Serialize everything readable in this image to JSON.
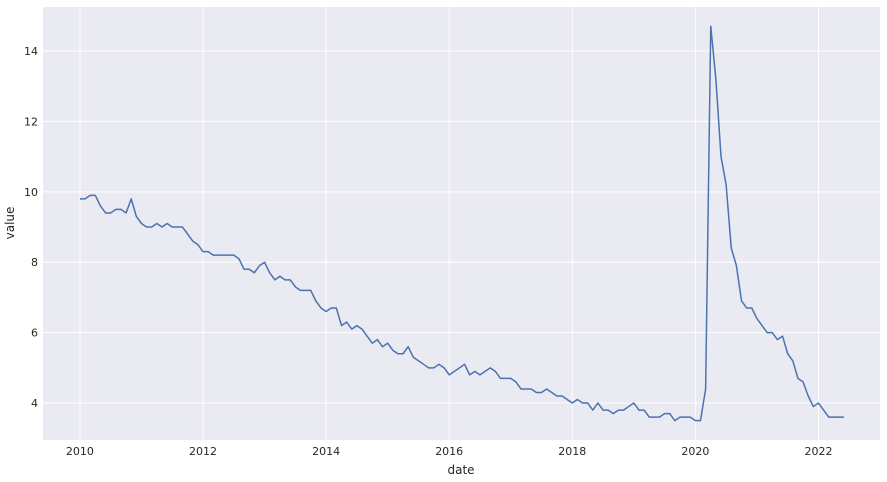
{
  "chart_data": {
    "type": "line",
    "title": "",
    "xlabel": "date",
    "ylabel": "value",
    "xlim": [
      2009.4,
      2023.0
    ],
    "ylim": [
      2.95,
      15.25
    ],
    "x_ticks": [
      {
        "value": 2010,
        "label": "2010"
      },
      {
        "value": 2012,
        "label": "2012"
      },
      {
        "value": 2014,
        "label": "2014"
      },
      {
        "value": 2016,
        "label": "2016"
      },
      {
        "value": 2018,
        "label": "2018"
      },
      {
        "value": 2020,
        "label": "2020"
      },
      {
        "value": 2022,
        "label": "2022"
      }
    ],
    "y_ticks": [
      {
        "value": 4,
        "label": "4"
      },
      {
        "value": 6,
        "label": "6"
      },
      {
        "value": 8,
        "label": "8"
      },
      {
        "value": 10,
        "label": "10"
      },
      {
        "value": 12,
        "label": "12"
      },
      {
        "value": 14,
        "label": "14"
      }
    ],
    "grid": true,
    "colors": {
      "background": "#eaeaf2",
      "grid": "#ffffff",
      "line": "#4c72b0"
    },
    "series": [
      {
        "start": "2010-01",
        "frequency": "monthly",
        "values": [
          9.8,
          9.8,
          9.9,
          9.9,
          9.6,
          9.4,
          9.4,
          9.5,
          9.5,
          9.4,
          9.8,
          9.3,
          9.1,
          9.0,
          9.0,
          9.1,
          9.0,
          9.1,
          9.0,
          9.0,
          9.0,
          8.8,
          8.6,
          8.5,
          8.3,
          8.3,
          8.2,
          8.2,
          8.2,
          8.2,
          8.2,
          8.1,
          7.8,
          7.8,
          7.7,
          7.9,
          8.0,
          7.7,
          7.5,
          7.6,
          7.5,
          7.5,
          7.3,
          7.2,
          7.2,
          7.2,
          6.9,
          6.7,
          6.6,
          6.7,
          6.7,
          6.2,
          6.3,
          6.1,
          6.2,
          6.1,
          5.9,
          5.7,
          5.8,
          5.6,
          5.7,
          5.5,
          5.4,
          5.4,
          5.6,
          5.3,
          5.2,
          5.1,
          5.0,
          5.0,
          5.1,
          5.0,
          4.8,
          4.9,
          5.0,
          5.1,
          4.8,
          4.9,
          4.8,
          4.9,
          5.0,
          4.9,
          4.7,
          4.7,
          4.7,
          4.6,
          4.4,
          4.4,
          4.4,
          4.3,
          4.3,
          4.4,
          4.3,
          4.2,
          4.2,
          4.1,
          4.0,
          4.1,
          4.0,
          4.0,
          3.8,
          4.0,
          3.8,
          3.8,
          3.7,
          3.8,
          3.8,
          3.9,
          4.0,
          3.8,
          3.8,
          3.6,
          3.6,
          3.6,
          3.7,
          3.7,
          3.5,
          3.6,
          3.6,
          3.6,
          3.5,
          3.5,
          4.4,
          14.7,
          13.2,
          11.0,
          10.2,
          8.4,
          7.9,
          6.9,
          6.7,
          6.7,
          6.4,
          6.2,
          6.0,
          6.0,
          5.8,
          5.9,
          5.4,
          5.2,
          4.7,
          4.6,
          4.2,
          3.9,
          4.0,
          3.8,
          3.6,
          3.6,
          3.6,
          3.6
        ]
      }
    ]
  }
}
